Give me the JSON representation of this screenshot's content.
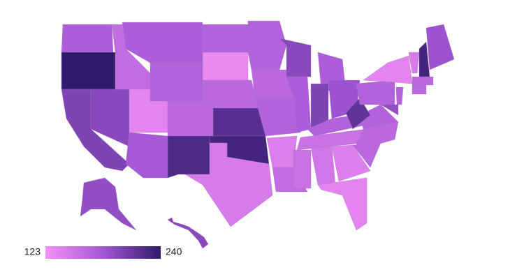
{
  "chart_data": {
    "type": "choropleth",
    "values": [
      175,
      240,
      200,
      195,
      160,
      175,
      170,
      135,
      165,
      180,
      225,
      170,
      130,
      165,
      220,
      230,
      145,
      170,
      165,
      170,
      140,
      160,
      195,
      175,
      175,
      200,
      185,
      170,
      155,
      155,
      150,
      140,
      135,
      165,
      165,
      170,
      215,
      170,
      135,
      190,
      170,
      145,
      230,
      185,
      165,
      165,
      190,
      195
    ],
    "cmin": 123,
    "cmax": 240,
    "colorscale": [
      "#f590f7",
      "#a457d6",
      "#301a6b"
    ]
  }
}
